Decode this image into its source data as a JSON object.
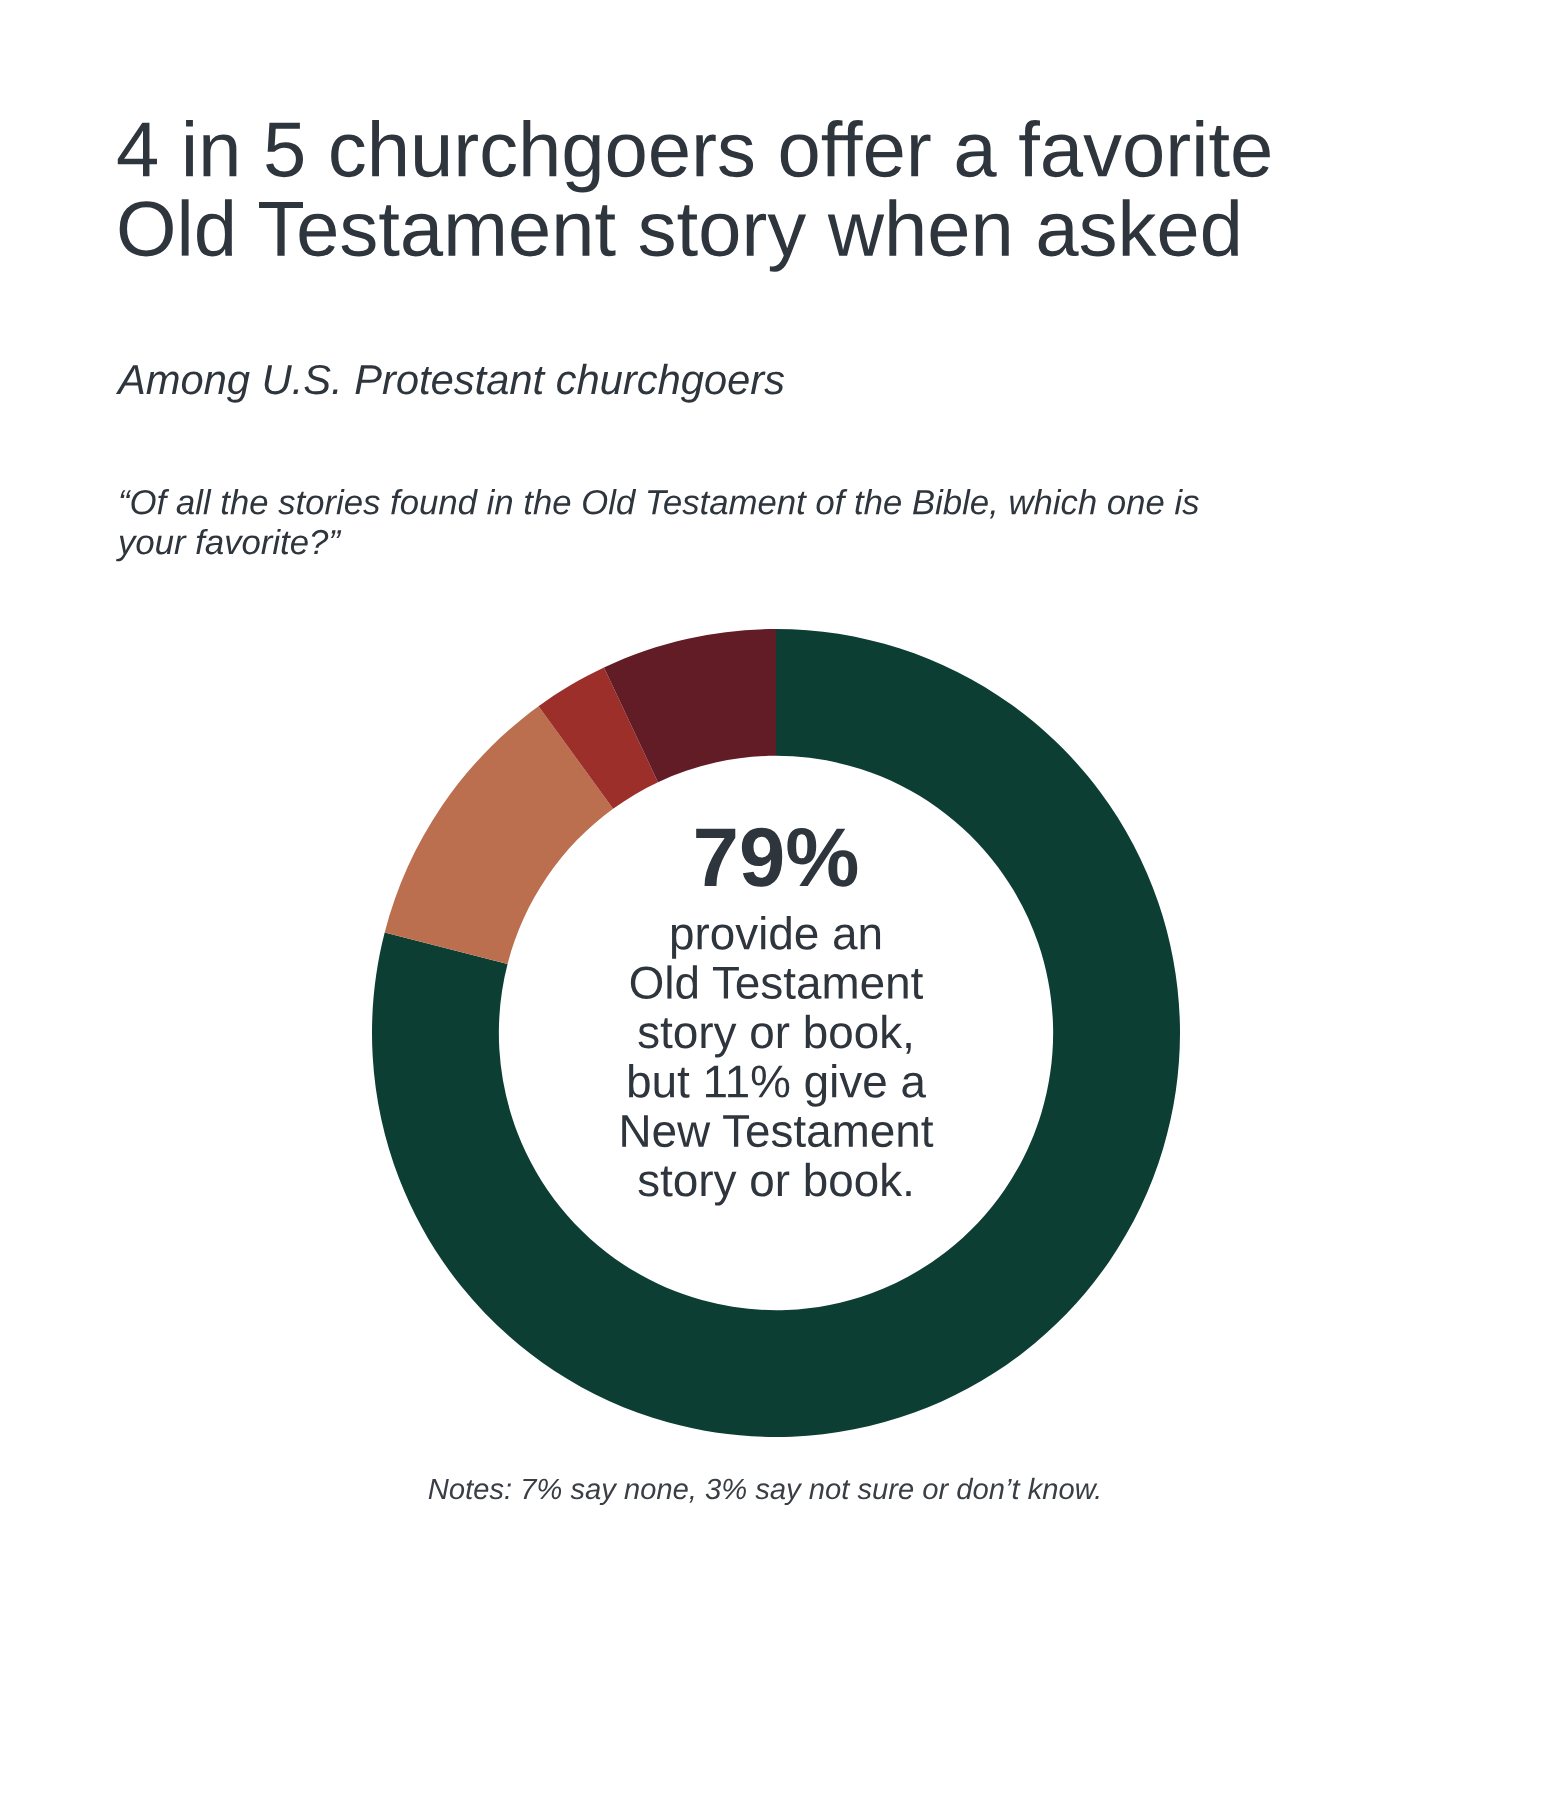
{
  "chart_data": {
    "type": "donut",
    "title": "4 in 5 churchgoers offer a favorite\nOld Testament story when asked",
    "subtitle": "Among U.S. Protestant churchgoers",
    "categories": [
      null,
      null,
      null,
      null
    ],
    "values": [
      79,
      11,
      3,
      7
    ],
    "colors": [
      "#0c3e33",
      "#bb6f4e",
      "#9c2f2a",
      "#621c26"
    ],
    "annotations": [
      "“Of all the stories found in the Old Testament of the Bible, which one is\nyour favorite?”",
      "79%",
      "provide an\nOld Testament\nstory or book,\nbut 11% give a\nNew Testament\nstory or book.",
      "Notes: 7% say none, 3% say not sure or don’t know."
    ]
  }
}
